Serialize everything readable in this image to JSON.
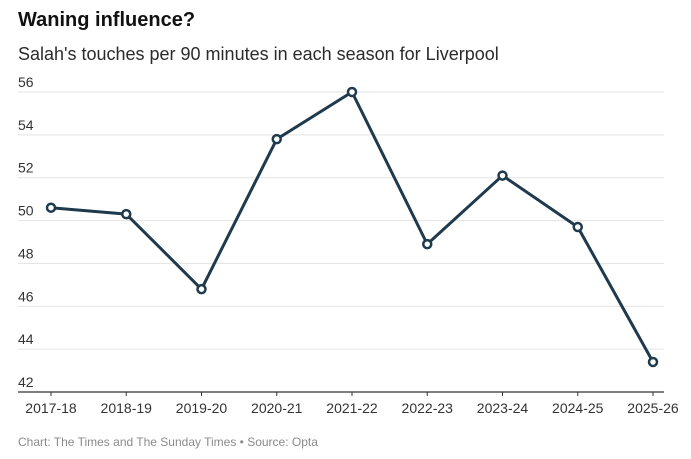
{
  "chart_data": {
    "type": "line",
    "title": "Waning influence?",
    "subtitle": "Salah's touches per 90 minutes in each season for Liverpool",
    "categories": [
      "2017-18",
      "2018-19",
      "2019-20",
      "2020-21",
      "2021-22",
      "2022-23",
      "2023-24",
      "2024-25",
      "2025-26"
    ],
    "series": [
      {
        "name": "Touches per 90 minutes",
        "values": [
          50.6,
          50.3,
          46.8,
          53.8,
          56.0,
          48.9,
          52.1,
          49.7,
          43.4
        ]
      }
    ],
    "ylim": [
      42,
      56
    ],
    "yticks": [
      42,
      44,
      46,
      48,
      50,
      52,
      54,
      56
    ],
    "grid": true,
    "xlabel": "",
    "ylabel": "",
    "line_color": "#1f3a4d",
    "grid_color": "#e3e3e3",
    "axis_color": "#333333"
  },
  "footer": {
    "credit": "Chart: The Times and The Sunday Times • Source: Opta"
  }
}
